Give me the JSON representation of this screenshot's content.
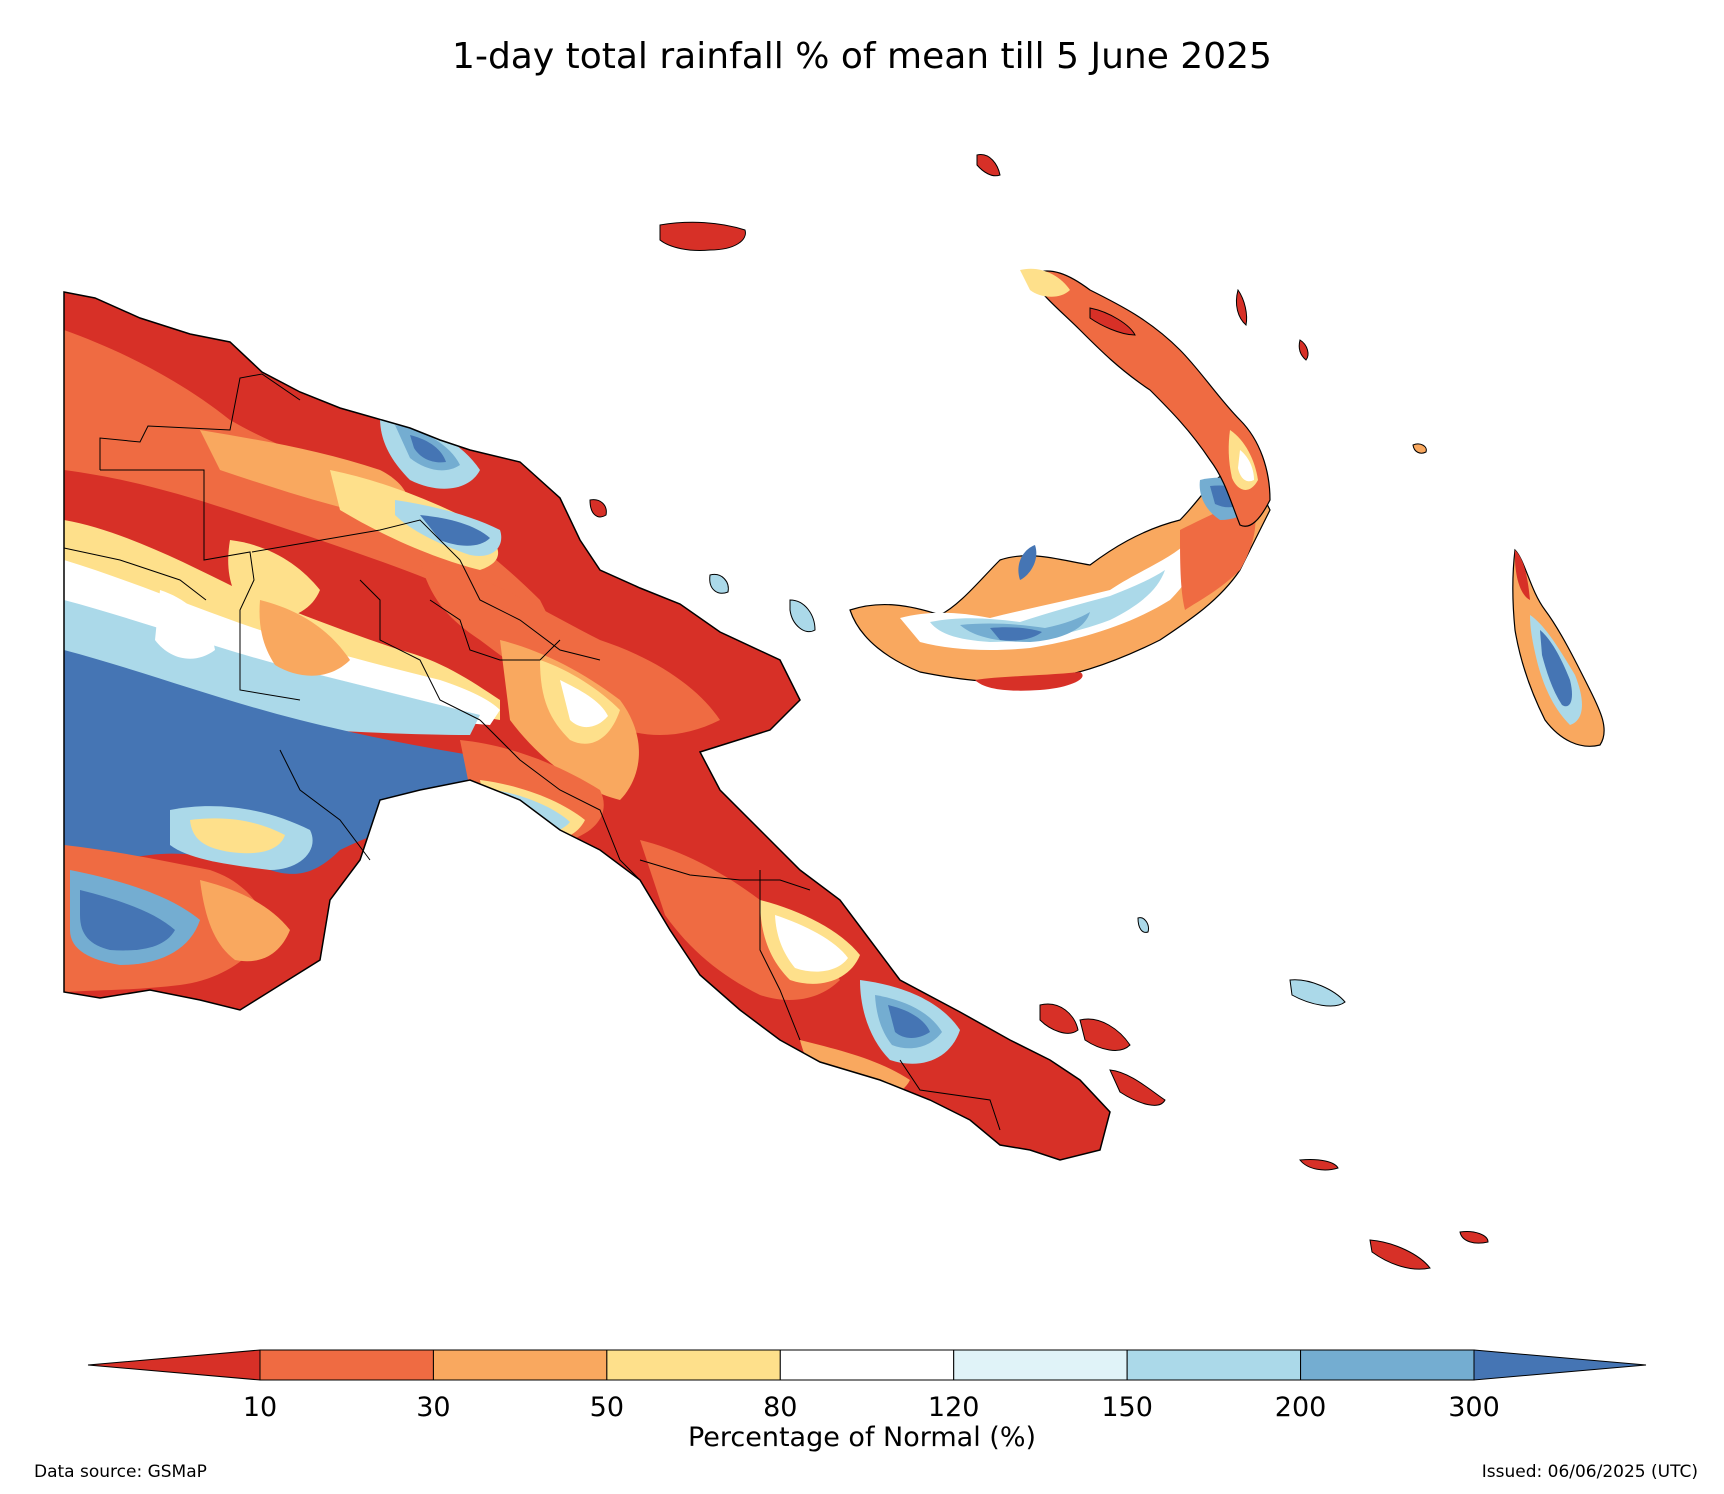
{
  "title": "1-day total rainfall % of mean till 5 June 2025",
  "colorbar": {
    "label": "Percentage of Normal (%)",
    "ticks": [
      "10",
      "30",
      "50",
      "80",
      "120",
      "150",
      "200",
      "300"
    ],
    "bins": [
      {
        "range": "<10",
        "color": "#d73027"
      },
      {
        "range": "10-30",
        "color": "#ef6b42"
      },
      {
        "range": "30-50",
        "color": "#f9a85f"
      },
      {
        "range": "50-80",
        "color": "#fee08b"
      },
      {
        "range": "80-120",
        "color": "#ffffff"
      },
      {
        "range": "120-150",
        "color": "#e0f3f8"
      },
      {
        "range": "150-200",
        "color": "#abd9e9"
      },
      {
        "range": "200-300",
        "color": "#74add1"
      },
      {
        "range": ">300",
        "color": "#4575b4"
      }
    ]
  },
  "footer": {
    "source": "Data source: GSMaP",
    "issued": "Issued: 06/06/2025 (UTC)"
  }
}
